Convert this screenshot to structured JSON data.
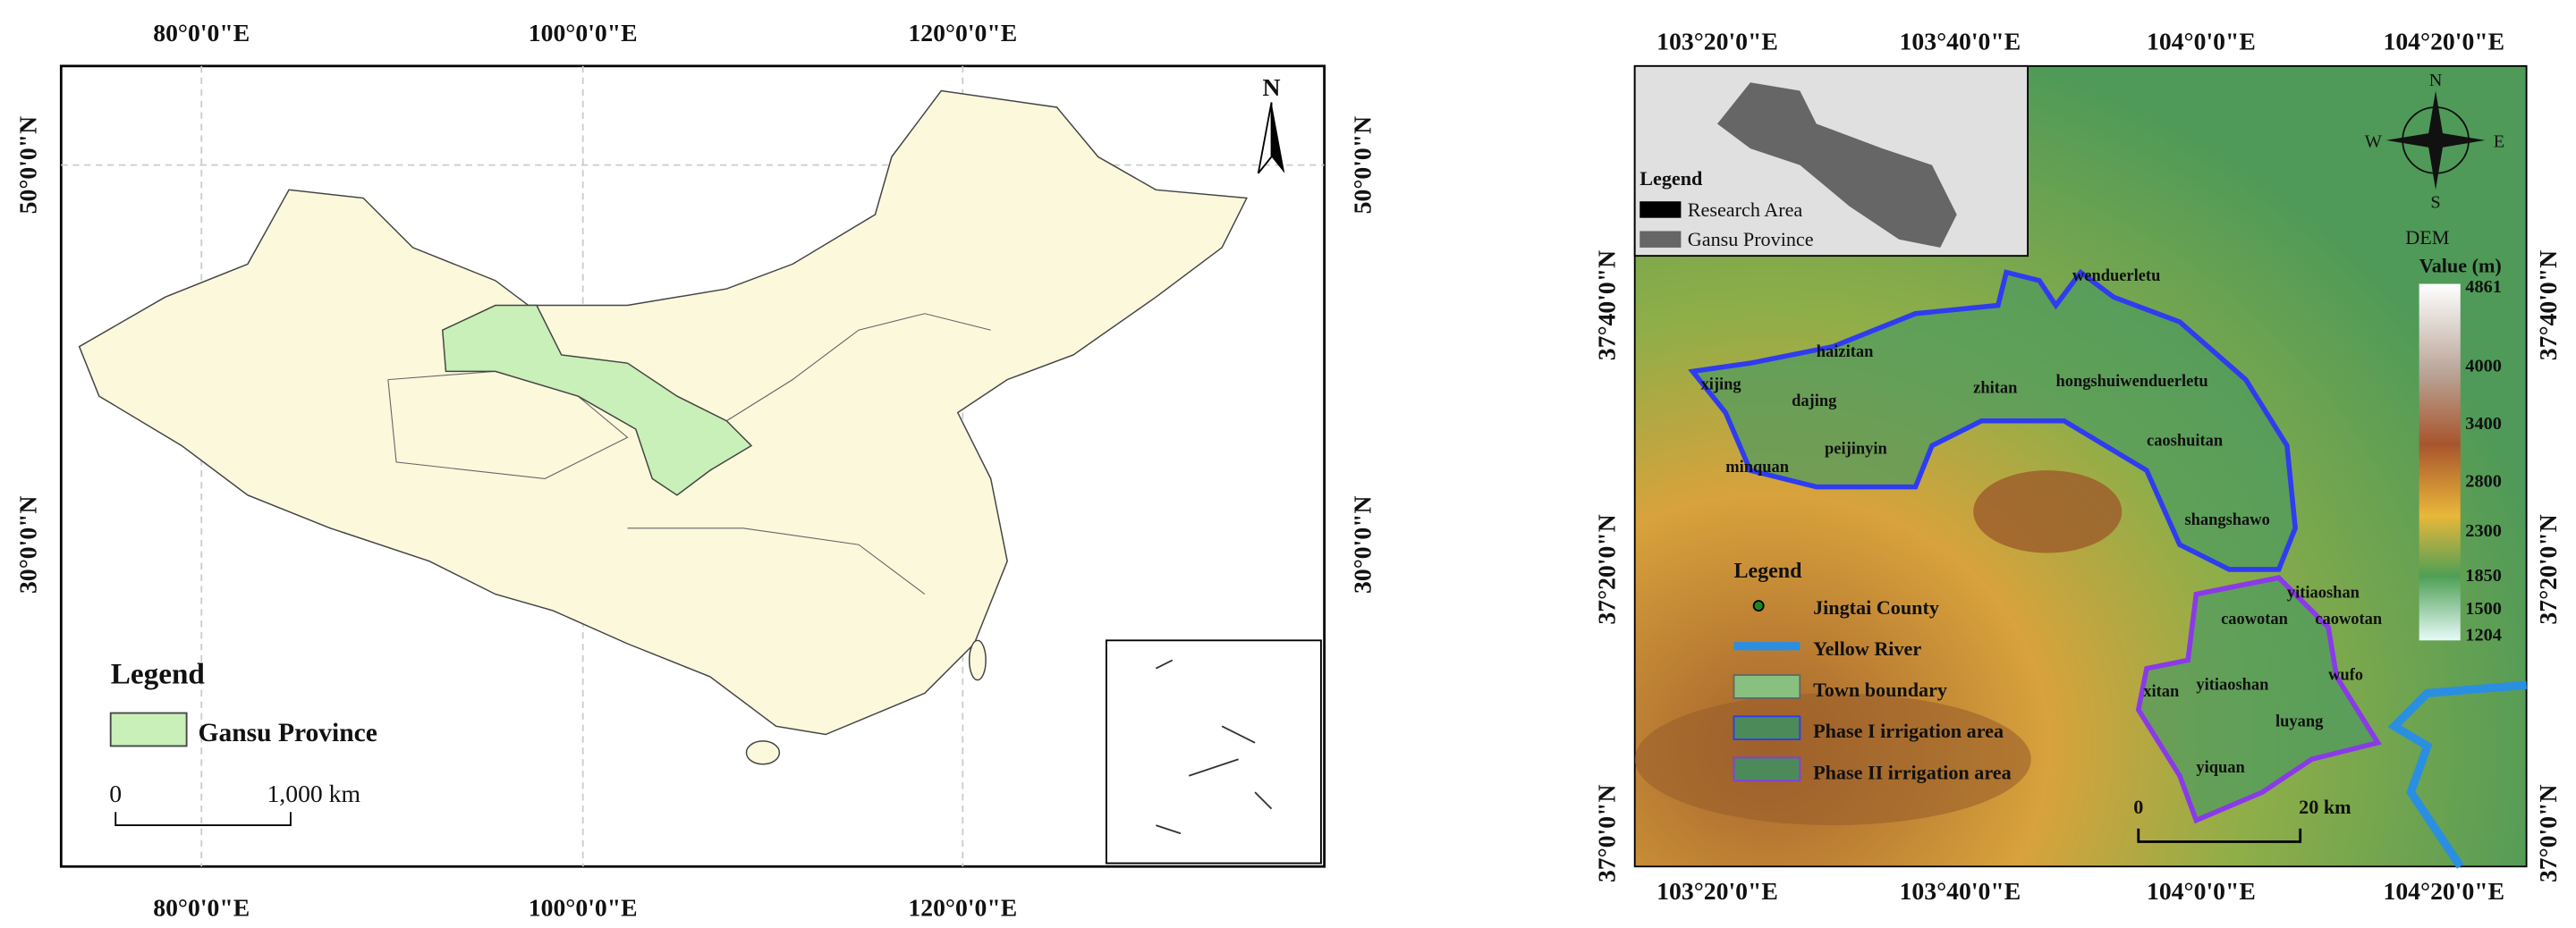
{
  "left_map": {
    "top_labels": [
      "80°0'0\"E",
      "100°0'0\"E",
      "120°0'0\"E"
    ],
    "bottom_labels": [
      "80°0'0\"E",
      "100°0'0\"E",
      "120°0'0\"E"
    ],
    "left_labels": [
      "50°0'0\"N",
      "30°0'0\"N"
    ],
    "right_labels": [
      "50°0'0\"N",
      "30°0'0\"N"
    ],
    "north": "N",
    "legend": {
      "title": "Legend",
      "item": "Gansu Province"
    },
    "scale": {
      "start": "0",
      "end": "1,000 km"
    }
  },
  "right_map": {
    "top_labels": [
      "103°20'0\"E",
      "103°40'0\"E",
      "104°0'0\"E",
      "104°20'0\"E"
    ],
    "bottom_labels": [
      "103°20'0\"E",
      "103°40'0\"E",
      "104°0'0\"E",
      "104°20'0\"E"
    ],
    "left_labels": [
      "37°40'0\"N",
      "37°20'0\"N",
      "37°0'0\"N"
    ],
    "right_labels": [
      "37°40'0\"N",
      "37°20'0\"N",
      "37°0'0\"N"
    ],
    "inset_legend": {
      "title": "Legend",
      "items": [
        "Research Area",
        "Gansu Province"
      ]
    },
    "compass": {
      "n": "N",
      "e": "E",
      "s": "S",
      "w": "W"
    },
    "dem": {
      "title": "DEM",
      "unit": "Value (m)",
      "labels": [
        4861,
        4000,
        3400,
        2800,
        2300,
        1850,
        1500,
        1204
      ]
    },
    "towns": [
      "wenduerletu",
      "xijing",
      "haizitan",
      "dajing",
      "zhitan",
      "hongshuiwenduerletu",
      "peijinyin",
      "minquan",
      "caoshuitan",
      "shangshawo",
      "yitiaoshan",
      "caowotan",
      "caowotan",
      "wufo",
      "xitan",
      "yitiaoshan",
      "luyang",
      "yiquan"
    ],
    "legend": {
      "title": "Legend",
      "items": [
        "Jingtai County",
        "Yellow River",
        "Town boundary",
        "Phase I irrigation area",
        "Phase II irrigation area"
      ]
    },
    "scale": {
      "start": "0",
      "end": "20 km"
    }
  }
}
